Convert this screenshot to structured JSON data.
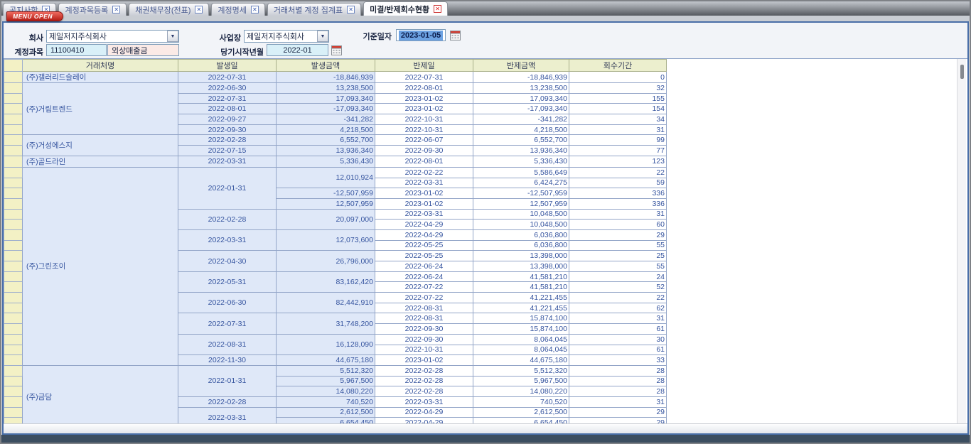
{
  "tabs": [
    {
      "label": "공지사항",
      "active": false
    },
    {
      "label": "계정과목등록",
      "active": false
    },
    {
      "label": "채권채무장(전표)",
      "active": false
    },
    {
      "label": "계정명세",
      "active": false
    },
    {
      "label": "거래처별 계정 집계표",
      "active": false
    },
    {
      "label": "미결/반제회수현황",
      "active": true
    }
  ],
  "menu_open_label": "MENU OPEN",
  "form": {
    "company_label": "회사",
    "company_value": "제일저지주식회사",
    "site_label": "사업장",
    "site_value": "제일저지주식회사",
    "base_date_label": "기준일자",
    "base_date_value": "2023-01-05",
    "account_label": "계정과목",
    "account_code": "11100410",
    "account_name": "외상매출금",
    "period_label": "당기시작년월",
    "period_value": "2022-01"
  },
  "colors": {
    "accent_red": "#b51d14",
    "header_bg": "#ecefce",
    "selector_bg": "#f3f1c5",
    "left_cell_bg": "#dfe8f8",
    "selection_blue": "#6da2e3",
    "panel_border": "#4a6fa8"
  },
  "table": {
    "headers": [
      "거래처명",
      "발생일",
      "발생금액",
      "반제일",
      "반제금액",
      "회수기간"
    ],
    "customers": [
      {
        "name": "(주)갤러리드슬레이",
        "occurrences": [
          {
            "date": "2022-07-31",
            "amounts": [
              {
                "amount": "-18,846,939",
                "settlements": [
                  {
                    "date": "2022-07-31",
                    "amount": "-18,846,939",
                    "days": "0"
                  }
                ]
              }
            ]
          }
        ]
      },
      {
        "name": "(주)거림트렌드",
        "occurrences": [
          {
            "date": "2022-06-30",
            "amounts": [
              {
                "amount": "13,238,500",
                "settlements": [
                  {
                    "date": "2022-08-01",
                    "amount": "13,238,500",
                    "days": "32"
                  }
                ]
              }
            ]
          },
          {
            "date": "2022-07-31",
            "amounts": [
              {
                "amount": "17,093,340",
                "settlements": [
                  {
                    "date": "2023-01-02",
                    "amount": "17,093,340",
                    "days": "155"
                  }
                ]
              }
            ]
          },
          {
            "date": "2022-08-01",
            "amounts": [
              {
                "amount": "-17,093,340",
                "settlements": [
                  {
                    "date": "2023-01-02",
                    "amount": "-17,093,340",
                    "days": "154"
                  }
                ]
              }
            ]
          },
          {
            "date": "2022-09-27",
            "amounts": [
              {
                "amount": "-341,282",
                "settlements": [
                  {
                    "date": "2022-10-31",
                    "amount": "-341,282",
                    "days": "34"
                  }
                ]
              }
            ]
          },
          {
            "date": "2022-09-30",
            "amounts": [
              {
                "amount": "4,218,500",
                "settlements": [
                  {
                    "date": "2022-10-31",
                    "amount": "4,218,500",
                    "days": "31"
                  }
                ]
              }
            ]
          }
        ]
      },
      {
        "name": "(주)거성에스지",
        "occurrences": [
          {
            "date": "2022-02-28",
            "amounts": [
              {
                "amount": "6,552,700",
                "settlements": [
                  {
                    "date": "2022-06-07",
                    "amount": "6,552,700",
                    "days": "99"
                  }
                ]
              }
            ]
          },
          {
            "date": "2022-07-15",
            "amounts": [
              {
                "amount": "13,936,340",
                "settlements": [
                  {
                    "date": "2022-09-30",
                    "amount": "13,936,340",
                    "days": "77"
                  }
                ]
              }
            ]
          }
        ]
      },
      {
        "name": "(주)골드라인",
        "occurrences": [
          {
            "date": "2022-03-31",
            "amounts": [
              {
                "amount": "5,336,430",
                "settlements": [
                  {
                    "date": "2022-08-01",
                    "amount": "5,336,430",
                    "days": "123"
                  }
                ]
              }
            ]
          }
        ]
      },
      {
        "name": "(주)그린조이",
        "occurrences": [
          {
            "date": "2022-01-31",
            "amounts": [
              {
                "amount": "12,010,924",
                "settlements": [
                  {
                    "date": "2022-02-22",
                    "amount": "5,586,649",
                    "days": "22"
                  },
                  {
                    "date": "2022-03-31",
                    "amount": "6,424,275",
                    "days": "59"
                  }
                ]
              },
              {
                "amount": "-12,507,959",
                "settlements": [
                  {
                    "date": "2023-01-02",
                    "amount": "-12,507,959",
                    "days": "336"
                  }
                ]
              },
              {
                "amount": "12,507,959",
                "settlements": [
                  {
                    "date": "2023-01-02",
                    "amount": "12,507,959",
                    "days": "336"
                  }
                ]
              }
            ]
          },
          {
            "date": "2022-02-28",
            "amounts": [
              {
                "amount": "20,097,000",
                "settlements": [
                  {
                    "date": "2022-03-31",
                    "amount": "10,048,500",
                    "days": "31"
                  },
                  {
                    "date": "2022-04-29",
                    "amount": "10,048,500",
                    "days": "60"
                  }
                ]
              }
            ]
          },
          {
            "date": "2022-03-31",
            "amounts": [
              {
                "amount": "12,073,600",
                "settlements": [
                  {
                    "date": "2022-04-29",
                    "amount": "6,036,800",
                    "days": "29"
                  },
                  {
                    "date": "2022-05-25",
                    "amount": "6,036,800",
                    "days": "55"
                  }
                ]
              }
            ]
          },
          {
            "date": "2022-04-30",
            "amounts": [
              {
                "amount": "26,796,000",
                "settlements": [
                  {
                    "date": "2022-05-25",
                    "amount": "13,398,000",
                    "days": "25"
                  },
                  {
                    "date": "2022-06-24",
                    "amount": "13,398,000",
                    "days": "55"
                  }
                ]
              }
            ]
          },
          {
            "date": "2022-05-31",
            "amounts": [
              {
                "amount": "83,162,420",
                "settlements": [
                  {
                    "date": "2022-06-24",
                    "amount": "41,581,210",
                    "days": "24"
                  },
                  {
                    "date": "2022-07-22",
                    "amount": "41,581,210",
                    "days": "52"
                  }
                ]
              }
            ]
          },
          {
            "date": "2022-06-30",
            "amounts": [
              {
                "amount": "82,442,910",
                "settlements": [
                  {
                    "date": "2022-07-22",
                    "amount": "41,221,455",
                    "days": "22"
                  },
                  {
                    "date": "2022-08-31",
                    "amount": "41,221,455",
                    "days": "62"
                  }
                ]
              }
            ]
          },
          {
            "date": "2022-07-31",
            "amounts": [
              {
                "amount": "31,748,200",
                "settlements": [
                  {
                    "date": "2022-08-31",
                    "amount": "15,874,100",
                    "days": "31"
                  },
                  {
                    "date": "2022-09-30",
                    "amount": "15,874,100",
                    "days": "61"
                  }
                ]
              }
            ]
          },
          {
            "date": "2022-08-31",
            "amounts": [
              {
                "amount": "16,128,090",
                "settlements": [
                  {
                    "date": "2022-09-30",
                    "amount": "8,064,045",
                    "days": "30"
                  },
                  {
                    "date": "2022-10-31",
                    "amount": "8,064,045",
                    "days": "61"
                  }
                ]
              }
            ]
          },
          {
            "date": "2022-11-30",
            "amounts": [
              {
                "amount": "44,675,180",
                "settlements": [
                  {
                    "date": "2023-01-02",
                    "amount": "44,675,180",
                    "days": "33"
                  }
                ]
              }
            ]
          }
        ]
      },
      {
        "name": "(주)금담",
        "occurrences": [
          {
            "date": "2022-01-31",
            "amounts": [
              {
                "amount": "5,512,320",
                "settlements": [
                  {
                    "date": "2022-02-28",
                    "amount": "5,512,320",
                    "days": "28"
                  }
                ]
              },
              {
                "amount": "5,967,500",
                "settlements": [
                  {
                    "date": "2022-02-28",
                    "amount": "5,967,500",
                    "days": "28"
                  }
                ]
              },
              {
                "amount": "14,080,220",
                "settlements": [
                  {
                    "date": "2022-02-28",
                    "amount": "14,080,220",
                    "days": "28"
                  }
                ]
              }
            ]
          },
          {
            "date": "2022-02-28",
            "amounts": [
              {
                "amount": "740,520",
                "settlements": [
                  {
                    "date": "2022-03-31",
                    "amount": "740,520",
                    "days": "31"
                  }
                ]
              }
            ]
          },
          {
            "date": "2022-03-31",
            "amounts": [
              {
                "amount": "2,612,500",
                "settlements": [
                  {
                    "date": "2022-04-29",
                    "amount": "2,612,500",
                    "days": "29"
                  }
                ]
              },
              {
                "amount": "6,654,450",
                "settlements": [
                  {
                    "date": "2022-04-29",
                    "amount": "6,654,450",
                    "days": "29"
                  }
                ]
              }
            ]
          }
        ]
      }
    ]
  }
}
